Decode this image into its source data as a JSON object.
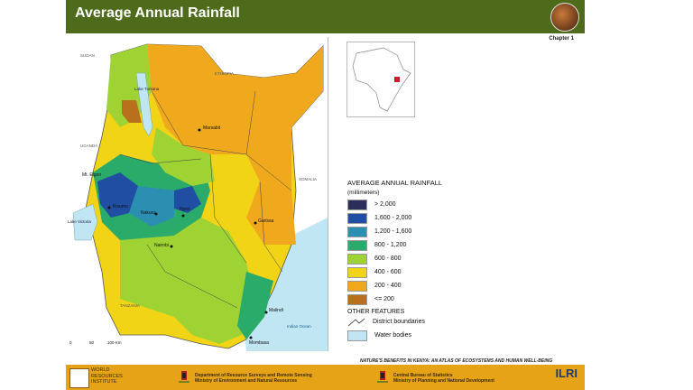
{
  "header": {
    "title": "Average Annual Rainfall",
    "chapter": "Chapter 1"
  },
  "map": {
    "neighbors": [
      "SUDAN",
      "ETHIOPIA",
      "SOMALIA",
      "UGANDA",
      "TANZANIA"
    ],
    "water_labels": [
      "Lake Turkana",
      "Lake Victoria",
      "Indian Ocean"
    ],
    "places": [
      "Marsabit",
      "Mt. Elgon",
      "Kisumu",
      "Nakuru",
      "Nyeri",
      "Garissa",
      "Nairobi",
      "Malindi",
      "Mombasa"
    ],
    "scale": [
      "0",
      "50",
      "100 Km"
    ]
  },
  "legend": {
    "title": "AVERAGE ANNUAL RAINFALL",
    "unit": "(millimeters)",
    "classes": [
      {
        "label": "> 2,000",
        "color": "#2b2d5a"
      },
      {
        "label": "1,600 - 2,000",
        "color": "#1f4ea3"
      },
      {
        "label": "1,200 - 1,600",
        "color": "#2a8fb0"
      },
      {
        "label": "800 - 1,200",
        "color": "#2bab6a"
      },
      {
        "label": "600 - 800",
        "color": "#9fd233"
      },
      {
        "label": "400 - 600",
        "color": "#f2d416"
      },
      {
        "label": "200 - 400",
        "color": "#f0a91d"
      },
      {
        "label": "<= 200",
        "color": "#b8701c"
      }
    ],
    "other_title": "OTHER FEATURES",
    "boundaries_label": "District boundaries",
    "water_label": "Water bodies",
    "water_color": "#bfe6f2"
  },
  "footer": {
    "caption": "NATURE'S BENEFITS IN KENYA: AN ATLAS OF ECOSYSTEMS AND HUMAN WELL-BEING",
    "wri": [
      "WORLD",
      "RESOURCES",
      "INSTITUTE"
    ],
    "org1_line1": "Department of Resource Surveys and Remote Sensing",
    "org1_line2": "Ministry of Environment and Natural Resources",
    "org2_line1": "Central Bureau of Statistics",
    "org2_line2": "Ministry of Planning and National Development",
    "ilri": "ILRI",
    "bar_color": "#e6a318"
  }
}
